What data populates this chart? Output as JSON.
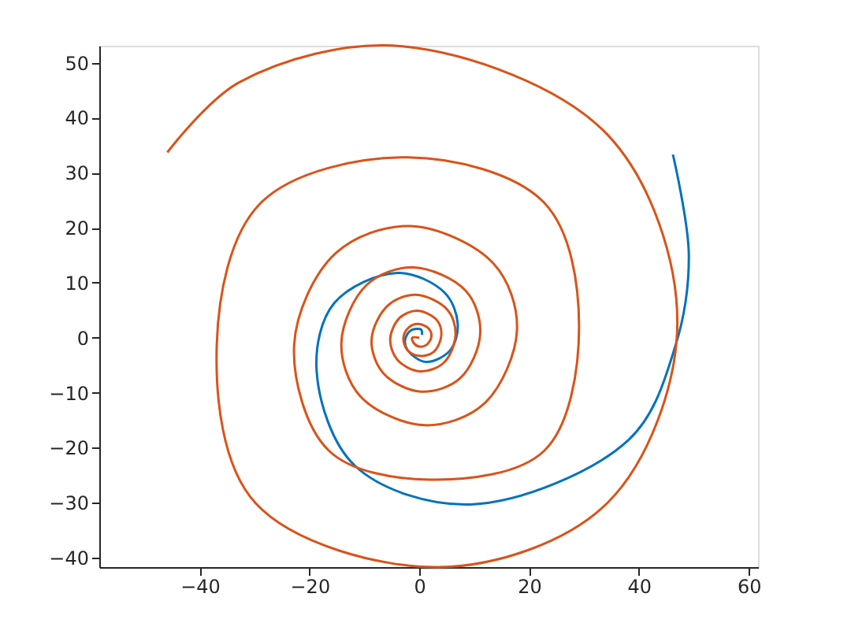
{
  "chart_data": {
    "type": "line",
    "xlim": [
      -58.3,
      61.7
    ],
    "ylim": [
      -41.7,
      53.1
    ],
    "xticks": [
      -40,
      -20,
      0,
      20,
      40,
      60
    ],
    "yticks": [
      -40,
      -30,
      -20,
      -10,
      0,
      10,
      20,
      30,
      40,
      50
    ],
    "grid": false,
    "marker": "none",
    "line_style": "solid",
    "series": [
      {
        "color": "#0072bd",
        "x": [
          0.5,
          0.3,
          -1.6,
          -2.6,
          -2.1,
          1.2,
          5.6,
          7,
          4.6,
          -4,
          -15.5,
          -18.7,
          -11.7,
          9.4,
          38.1,
          46.7,
          49.1,
          46.2
        ],
        "values": [
          0.5,
          1.5,
          1.3,
          -0.4,
          -2.3,
          -4.4,
          -2.3,
          2.5,
          8.2,
          11.8,
          6.3,
          -6.1,
          -23.3,
          -30.3,
          -18.6,
          -1.3,
          14.9,
          33.3
        ]
      },
      {
        "color": "#d95319",
        "x": [
          0,
          -1.3,
          -1.0,
          0,
          1.3,
          2.2,
          1.7,
          -0.2,
          -1.9,
          -2.9,
          -2.2,
          0,
          2.6,
          4,
          3.2,
          -0.4,
          -3.6,
          -5.3,
          -4,
          0.1,
          4.5,
          6.6,
          5.1,
          -0.6,
          -5.8,
          -8.7,
          -6.5,
          0.3,
          7.4,
          11.1,
          8.5,
          -1.1,
          -9.6,
          -14.2,
          -10.7,
          1,
          11.9,
          17.8,
          13.5,
          -1.6,
          -15.3,
          -22.8,
          -16.5,
          1.9,
          22.8,
          29.1,
          22.8,
          -2.1,
          -28.9,
          -36.9,
          -29.9,
          3.6,
          34.3,
          47,
          34.3,
          -3.1,
          -32.7,
          -45.9
        ],
        "values": [
          0,
          0,
          -1.0,
          -1.6,
          -1.3,
          0.2,
          1.7,
          2.5,
          1.9,
          0,
          -2.2,
          -3.3,
          -2.6,
          0.4,
          3.2,
          4.9,
          3.6,
          -0.2,
          -4,
          -6.1,
          -4.5,
          0.6,
          5.1,
          7.8,
          5.8,
          -0.4,
          -6.5,
          -9.8,
          -7.4,
          0.8,
          8.5,
          12.8,
          9.6,
          -0.9,
          -10.7,
          -15.9,
          -11.9,
          1.5,
          13.5,
          20.3,
          15.3,
          -1.3,
          -20.5,
          -25.8,
          -20.5,
          2,
          24.5,
          32.8,
          24.5,
          -1.3,
          -30,
          -41.7,
          -30,
          2.5,
          36.9,
          53,
          46.5,
          33.7
        ]
      }
    ]
  }
}
